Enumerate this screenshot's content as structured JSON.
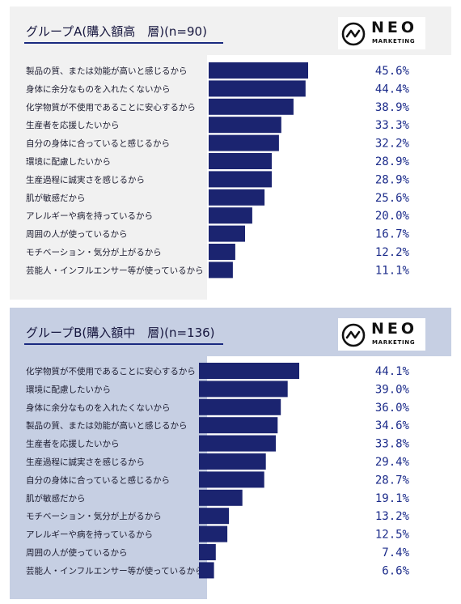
{
  "logo": {
    "name": "NEO",
    "sub": "MARKETING"
  },
  "chart_data": [
    {
      "type": "bar",
      "orientation": "horizontal",
      "title": "グループA(購入額高　層)(n=90)",
      "categories": [
        "製品の質、または効能が高いと感じるから",
        "身体に余分なものを入れたくないから",
        "化学物質が不使用であることに安心するから",
        "生産者を応援したいから",
        "自分の身体に合っていると感じるから",
        "環境に配慮したいから",
        "生産過程に誠実さを感じるから",
        "肌が敏感だから",
        "アレルギーや病を持っているから",
        "周囲の人が使っているから",
        "モチベーション・気分が上がるから",
        "芸能人・インフルエンサー等が使っているから"
      ],
      "values": [
        45.6,
        44.4,
        38.9,
        33.3,
        32.2,
        28.9,
        28.9,
        25.6,
        20.0,
        16.7,
        12.2,
        11.1
      ],
      "labels": [
        "45.6%",
        "44.4%",
        "38.9%",
        "33.3%",
        "32.2%",
        "28.9%",
        "28.9%",
        "25.6%",
        "20.0%",
        "16.7%",
        "12.2%",
        "11.1%"
      ],
      "bar_color": "#1b2470",
      "label_color": "#1b2b8a"
    },
    {
      "type": "bar",
      "orientation": "horizontal",
      "title": "グループB(購入額中　層)(n=136)",
      "categories": [
        "化学物質が不使用であることに安心するから",
        "環境に配慮したいから",
        "身体に余分なものを入れたくないから",
        "製品の質、または効能が高いと感じるから",
        "生産者を応援したいから",
        "生産過程に誠実さを感じるから",
        "自分の身体に合っていると感じるから",
        "肌が敏感だから",
        "モチベーション・気分が上がるから",
        "アレルギーや病を持っているから",
        "周囲の人が使っているから",
        "芸能人・インフルエンサー等が使っているから"
      ],
      "values": [
        44.1,
        39.0,
        36.0,
        34.6,
        33.8,
        29.4,
        28.7,
        19.1,
        13.2,
        12.5,
        7.4,
        6.6
      ],
      "labels": [
        "44.1%",
        "39.0%",
        "36.0%",
        "34.6%",
        "33.8%",
        "29.4%",
        "28.7%",
        "19.1%",
        "13.2%",
        "12.5%",
        "7.4%",
        "6.6%"
      ],
      "bar_color": "#1b2470",
      "label_color": "#1b2b8a"
    }
  ]
}
